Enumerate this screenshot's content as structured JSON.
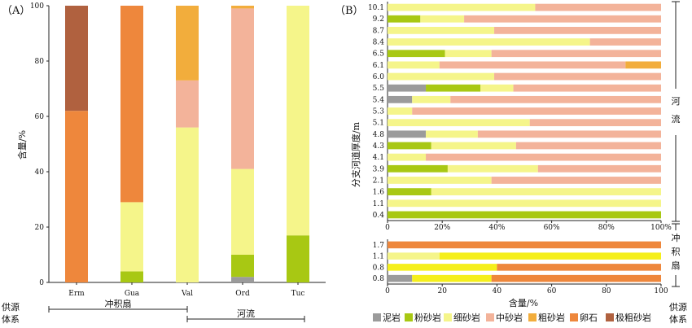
{
  "colors": {
    "mudstone": "#9b9b9b",
    "siltstone": "#a8c813",
    "fine_sandstone": "#f5f58a",
    "medium_sandstone": "#f3b39a",
    "coarse_sandstone": "#f2ad3c",
    "gravel": "#ee873c",
    "very_coarse_sandstone": "#b0613f",
    "fine_sandstone_B_bottom": "#f5ef1a"
  },
  "legend": {
    "label": "供源体系",
    "items": [
      {
        "key": "mudstone",
        "name": "泥岩"
      },
      {
        "key": "siltstone",
        "name": "粉砂岩"
      },
      {
        "key": "fine_sandstone",
        "name": "细砂岩"
      },
      {
        "key": "medium_sandstone",
        "name": "中砂岩"
      },
      {
        "key": "coarse_sandstone",
        "name": "粗砂岩"
      },
      {
        "key": "gravel",
        "name": "卵石"
      },
      {
        "key": "very_coarse_sandstone",
        "name": "极粗砂岩"
      }
    ]
  },
  "chart_data": [
    {
      "type": "bar",
      "stacked": true,
      "panel": "（A）",
      "ylabel": "含量/%",
      "ylim": [
        0,
        100
      ],
      "yticks": [
        "0",
        "20",
        "40",
        "60",
        "80",
        "100"
      ],
      "categories": [
        "Erm",
        "Gua",
        "Val",
        "Ord",
        "Tuc"
      ],
      "series": [
        {
          "name": "泥岩",
          "key": "mudstone",
          "values": [
            0,
            0,
            0,
            2,
            0
          ]
        },
        {
          "name": "粉砂岩",
          "key": "siltstone",
          "values": [
            0,
            4,
            0,
            8,
            17
          ]
        },
        {
          "name": "细砂岩",
          "key": "fine_sandstone",
          "values": [
            0,
            25,
            56,
            31,
            83
          ]
        },
        {
          "name": "中砂岩",
          "key": "medium_sandstone",
          "values": [
            0,
            0,
            17,
            58,
            0
          ]
        },
        {
          "name": "粗砂岩",
          "key": "coarse_sandstone",
          "values": [
            0,
            0,
            27,
            1,
            0
          ]
        },
        {
          "name": "卵石",
          "key": "gravel",
          "values": [
            62,
            71,
            0,
            0,
            0
          ]
        },
        {
          "name": "极粗砂岩",
          "key": "very_coarse_sandstone",
          "values": [
            38,
            0,
            0,
            0,
            0
          ]
        }
      ],
      "groups": [
        {
          "name": "冲积扇",
          "categories": [
            "Erm",
            "Gua",
            "Val"
          ]
        },
        {
          "name": "河流",
          "categories": [
            "Val",
            "Ord",
            "Tuc"
          ]
        }
      ]
    },
    {
      "type": "bar",
      "orientation": "horizontal",
      "stacked": true,
      "panel": "（B）",
      "ylabel": "分支河道厚度/m",
      "xlabel": "含量/%",
      "xlim": [
        0,
        100
      ],
      "xticks_upper": [
        "0",
        "20%",
        "40%",
        "60%",
        "80%",
        "100%"
      ],
      "xticks_lower": [
        "0",
        "20",
        "40",
        "60",
        "80",
        "100"
      ],
      "upper": {
        "group": "河流",
        "categories": [
          "10.1",
          "9.2",
          "8.7",
          "8.4",
          "6.5",
          "6.1",
          "6.0",
          "5.5",
          "5.4",
          "5.3",
          "5.1",
          "4.8",
          "4.3",
          "4.1",
          "3.9",
          "2.1",
          "1.6",
          "1.1",
          "0.4"
        ],
        "series": [
          {
            "name": "泥岩",
            "key": "mudstone",
            "values": [
              0,
              0,
              0,
              0,
              0,
              0,
              0,
              14,
              9,
              0,
              0,
              14,
              0,
              0,
              0,
              0,
              0,
              0,
              0
            ]
          },
          {
            "name": "粉砂岩",
            "key": "siltstone",
            "values": [
              0,
              12,
              0,
              0,
              21,
              0,
              0,
              20,
              0,
              0,
              0,
              0,
              16,
              0,
              22,
              0,
              16,
              0,
              100
            ]
          },
          {
            "name": "细砂岩",
            "key": "fine_sandstone",
            "values": [
              54,
              16,
              39,
              74,
              17,
              19,
              39,
              12,
              14,
              9,
              52,
              19,
              31,
              14,
              33,
              38,
              84,
              100,
              0
            ]
          },
          {
            "name": "中砂岩",
            "key": "medium_sandstone",
            "values": [
              46,
              72,
              61,
              26,
              62,
              68,
              61,
              54,
              77,
              91,
              48,
              67,
              53,
              86,
              45,
              62,
              0,
              0,
              0
            ]
          },
          {
            "name": "粗砂岩",
            "key": "coarse_sandstone",
            "values": [
              0,
              0,
              0,
              0,
              0,
              13,
              0,
              0,
              0,
              0,
              0,
              0,
              0,
              0,
              0,
              0,
              0,
              0,
              0
            ]
          }
        ]
      },
      "lower": {
        "group": "冲积扇",
        "categories": [
          "1.7",
          "1.1",
          "0.8",
          "0.8"
        ],
        "series": [
          {
            "name": "泥岩",
            "key": "mudstone",
            "values": [
              0,
              0,
              0,
              9
            ]
          },
          {
            "name": "细砂岩",
            "key": "fine_sandstone",
            "values": [
              0,
              19,
              0,
              0
            ]
          },
          {
            "name": "细砂岩",
            "key": "fine_sandstone_B_bottom",
            "values": [
              0,
              81,
              40,
              29
            ]
          },
          {
            "name": "卵石",
            "key": "gravel",
            "values": [
              100,
              0,
              60,
              62
            ]
          }
        ]
      }
    }
  ]
}
